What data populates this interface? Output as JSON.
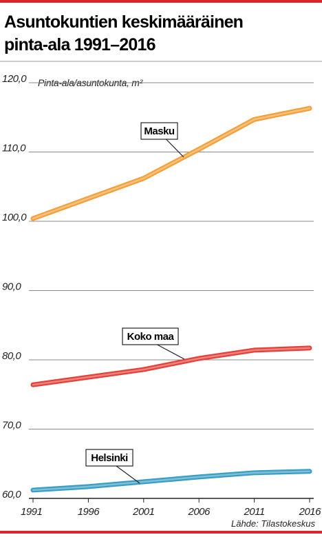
{
  "chart_data": {
    "type": "line",
    "title_lines": [
      "Asuntokuntien keskimääräinen",
      "pinta-ala 1991–2016"
    ],
    "y_label": "Pinta-ala/asuntokunta, m²",
    "source": "Lähde: Tilastokeskus",
    "x": [
      1991,
      1996,
      2001,
      2006,
      2011,
      2016
    ],
    "xlim": [
      1991,
      2016
    ],
    "xticks": [
      1991,
      1996,
      2001,
      2006,
      2011,
      2016
    ],
    "ylim": [
      60,
      120
    ],
    "yticks": [
      {
        "value": 60,
        "label": "60,0"
      },
      {
        "value": 70,
        "label": "70,0"
      },
      {
        "value": 80,
        "label": "80,0"
      },
      {
        "value": 90,
        "label": "90,0"
      },
      {
        "value": 100,
        "label": "100,0"
      },
      {
        "value": 110,
        "label": "110,0"
      },
      {
        "value": 120,
        "label": "120,0"
      }
    ],
    "grid": true,
    "series": [
      {
        "name": "Masku",
        "color": "#f3a03a",
        "values": [
          100.4,
          103.3,
          106.2,
          110.4,
          114.7,
          116.3
        ]
      },
      {
        "name": "Koko maa",
        "color": "#e4413a",
        "values": [
          76.4,
          77.5,
          78.6,
          80.2,
          81.4,
          81.7
        ]
      },
      {
        "name": "Helsinki",
        "color": "#3a9ec4",
        "values": [
          61.2,
          61.7,
          62.4,
          63.1,
          63.7,
          63.9
        ]
      }
    ]
  }
}
